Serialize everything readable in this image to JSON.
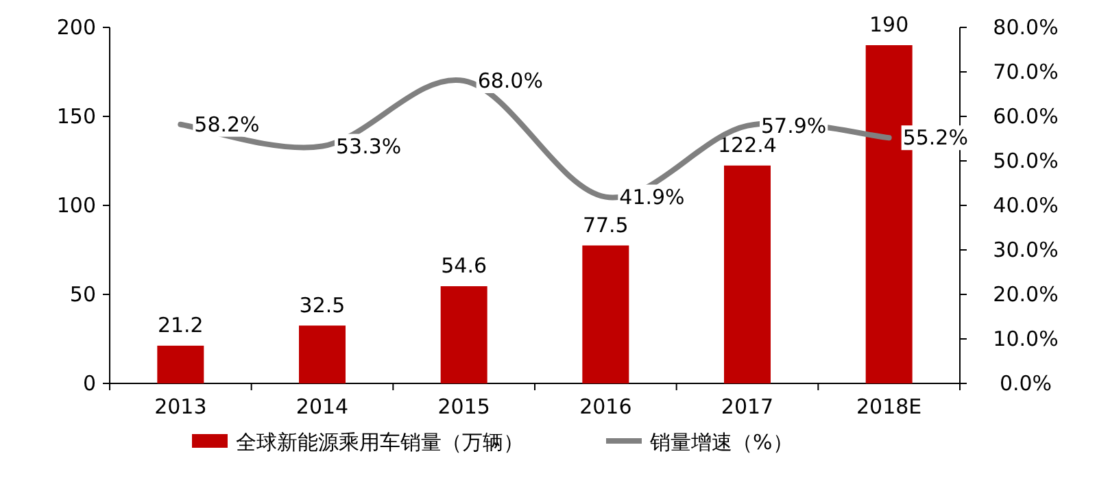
{
  "chart_data": {
    "type": "bar",
    "categories": [
      "2013",
      "2014",
      "2015",
      "2016",
      "2017",
      "2018E"
    ],
    "series": [
      {
        "name": "全球新能源乘用车销量（万辆）",
        "color": "#c00000",
        "values": [
          21.2,
          32.5,
          54.6,
          77.5,
          122.4,
          190
        ],
        "value_labels": [
          "21.2",
          "32.5",
          "54.6",
          "77.5",
          "122.4",
          "190"
        ]
      },
      {
        "name": "销量增速（%）",
        "type": "line",
        "axis": "y2",
        "color": "#808080",
        "values": [
          58.2,
          53.3,
          68.0,
          41.9,
          57.9,
          55.2
        ],
        "value_labels": [
          "58.2%",
          "53.3%",
          "68.0%",
          "41.9%",
          "57.9%",
          "55.2%"
        ]
      }
    ],
    "ylim": [
      0,
      200
    ],
    "yticks": [
      0,
      50,
      100,
      150,
      200
    ],
    "y2lim": [
      0,
      80
    ],
    "y2ticks": [
      {
        "value": 0,
        "label": "0.0%"
      },
      {
        "value": 10,
        "label": "10.0%"
      },
      {
        "value": 20,
        "label": "20.0%"
      },
      {
        "value": 30,
        "label": "30.0%"
      },
      {
        "value": 40,
        "label": "40.0%"
      },
      {
        "value": 50,
        "label": "50.0%"
      },
      {
        "value": 60,
        "label": "60.0%"
      },
      {
        "value": 70,
        "label": "70.0%"
      },
      {
        "value": 80,
        "label": "80.0%"
      }
    ],
    "legend": "bottom"
  }
}
